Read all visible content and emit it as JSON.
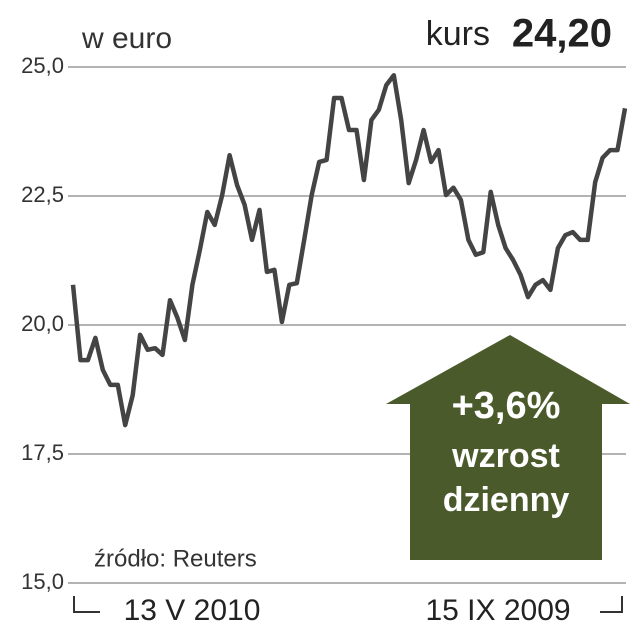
{
  "chart_data": {
    "type": "line",
    "unit_label": "w euro",
    "headline_label": "kurs",
    "headline_value": "24,20",
    "source": "źródło: Reuters",
    "x_axis_labels": [
      "13 V 2010",
      "15 IX 2009"
    ],
    "annotation": [
      "+3,6%",
      "wzrost",
      "dzienny"
    ],
    "series": [
      {
        "name": "kurs",
        "color": "#444444",
        "values": [
          20.78,
          19.32,
          19.32,
          19.75,
          19.13,
          18.84,
          18.84,
          18.06,
          18.64,
          19.81,
          19.52,
          19.55,
          19.42,
          20.48,
          20.14,
          19.71,
          20.78,
          21.45,
          22.19,
          21.94,
          22.52,
          23.29,
          22.71,
          22.33,
          21.65,
          22.23,
          21.03,
          21.07,
          20.06,
          20.78,
          20.81,
          21.65,
          22.52,
          23.16,
          23.2,
          24.4,
          24.4,
          23.78,
          23.78,
          22.81,
          23.97,
          24.17,
          24.65,
          24.84,
          23.97,
          22.75,
          23.2,
          23.78,
          23.16,
          23.39,
          22.52,
          22.66,
          22.42,
          21.65,
          21.36,
          21.41,
          22.58,
          21.94,
          21.49,
          21.26,
          20.97,
          20.54,
          20.78,
          20.87,
          20.68,
          21.49,
          21.74,
          21.8,
          21.65,
          21.65,
          22.77,
          23.24,
          23.39,
          23.39,
          24.2
        ]
      }
    ],
    "ylim": [
      15,
      25
    ],
    "yticks": [
      {
        "value": 15,
        "label": "15,0"
      },
      {
        "value": 17.5,
        "label": "17,5"
      },
      {
        "value": 20,
        "label": "20,0"
      },
      {
        "value": 22.5,
        "label": "22,5"
      },
      {
        "value": 25,
        "label": "25,0"
      }
    ],
    "grid": true
  }
}
